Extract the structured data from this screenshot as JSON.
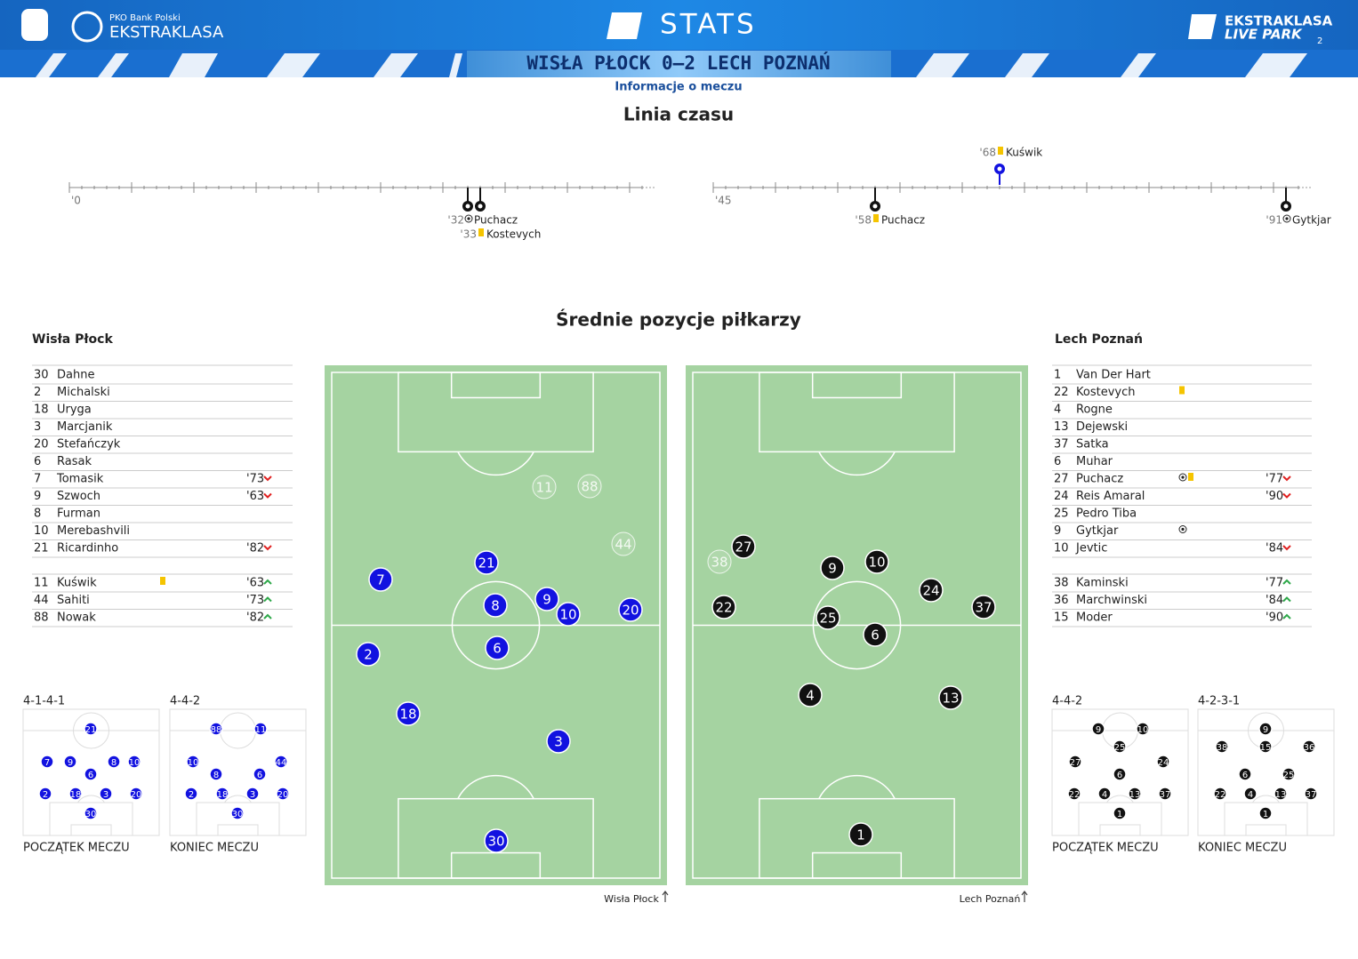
{
  "header": {
    "brand_small": "PKO Bank Polski",
    "brand": "EKSTRAKLASA",
    "stats": "STATS",
    "right_logo_top": "EKSTRAKLASA",
    "right_logo_bottom": "LIVE PARK",
    "page": "2",
    "match": "WISŁA PŁOCK 0–2 LECH POZNAŃ",
    "info_link": "Informacje o meczu"
  },
  "timeline": {
    "title": "Linia czasu",
    "halves": [
      {
        "value": 0,
        "label": "'0"
      },
      {
        "value": 45,
        "label": "'45"
      }
    ],
    "events": [
      {
        "minute": {
          "value": 32,
          "label": "'32"
        },
        "player": "Puchacz",
        "kind": "goal",
        "team": "away"
      },
      {
        "minute": {
          "value": 33,
          "label": "'33"
        },
        "player": "Kostevych",
        "kind": "yellow",
        "team": "away"
      },
      {
        "minute": {
          "value": 58,
          "label": "'58"
        },
        "player": "Puchacz",
        "kind": "yellow",
        "team": "away"
      },
      {
        "minute": {
          "value": 68,
          "label": "'68"
        },
        "player": "Kuświk",
        "kind": "yellow",
        "team": "home"
      },
      {
        "minute": {
          "value": 91,
          "label": "'91"
        },
        "player": "Gytkjar",
        "kind": "goal",
        "team": "away"
      }
    ]
  },
  "positions": {
    "title": "Średnie pozycje piłkarzy",
    "home": {
      "name": "Wisła Płock",
      "color": "#1212e0",
      "players": [
        {
          "number": "30",
          "name": "Dahne"
        },
        {
          "number": "2",
          "name": "Michalski"
        },
        {
          "number": "18",
          "name": "Uryga"
        },
        {
          "number": "3",
          "name": "Marcjanik"
        },
        {
          "number": "20",
          "name": "Stefańczyk"
        },
        {
          "number": "6",
          "name": "Rasak"
        },
        {
          "number": "7",
          "name": "Tomasik",
          "minute": "'73",
          "sub": "off"
        },
        {
          "number": "9",
          "name": "Szwoch",
          "minute": "'63",
          "sub": "off"
        },
        {
          "number": "8",
          "name": "Furman"
        },
        {
          "number": "10",
          "name": "Merebashvili"
        },
        {
          "number": "21",
          "name": "Ricardinho",
          "minute": "'82",
          "sub": "off"
        },
        {
          "number": "11",
          "name": "Kuświk",
          "card": "yellow",
          "minute": "'63",
          "sub": "on"
        },
        {
          "number": "44",
          "name": "Sahiti",
          "minute": "'73",
          "sub": "on"
        },
        {
          "number": "88",
          "name": "Nowak",
          "minute": "'82",
          "sub": "on"
        }
      ],
      "formations": [
        {
          "formation": "4-1-4-1",
          "label": "POCZĄTEK MECZU"
        },
        {
          "formation": "4-4-2",
          "label": "KONIEC MECZU"
        }
      ]
    },
    "away": {
      "name": "Lech Poznań",
      "color": "#111111",
      "players": [
        {
          "number": "1",
          "name": "Van Der Hart"
        },
        {
          "number": "22",
          "name": "Kostevych",
          "card": "yellow"
        },
        {
          "number": "4",
          "name": "Rogne"
        },
        {
          "number": "13",
          "name": "Dejewski"
        },
        {
          "number": "37",
          "name": "Satka"
        },
        {
          "number": "6",
          "name": "Muhar"
        },
        {
          "number": "27",
          "name": "Puchacz",
          "goal": true,
          "card": "yellow",
          "minute": "'77",
          "sub": "off"
        },
        {
          "number": "24",
          "name": "Reis Amaral",
          "minute": "'90",
          "sub": "off"
        },
        {
          "number": "25",
          "name": "Pedro Tiba"
        },
        {
          "number": "9",
          "name": "Gytkjar",
          "goal": true
        },
        {
          "number": "10",
          "name": "Jevtic",
          "minute": "'84",
          "sub": "off"
        },
        {
          "number": "38",
          "name": "Kaminski",
          "minute": "'77",
          "sub": "on"
        },
        {
          "number": "36",
          "name": "Marchwinski",
          "minute": "'84",
          "sub": "on"
        },
        {
          "number": "15",
          "name": "Moder",
          "minute": "'90",
          "sub": "on"
        }
      ],
      "formations": [
        {
          "formation": "4-4-2",
          "label": "POCZĄTEK MECZU"
        },
        {
          "formation": "4-2-3-1",
          "label": "KONIEC MECZU"
        }
      ]
    }
  }
}
